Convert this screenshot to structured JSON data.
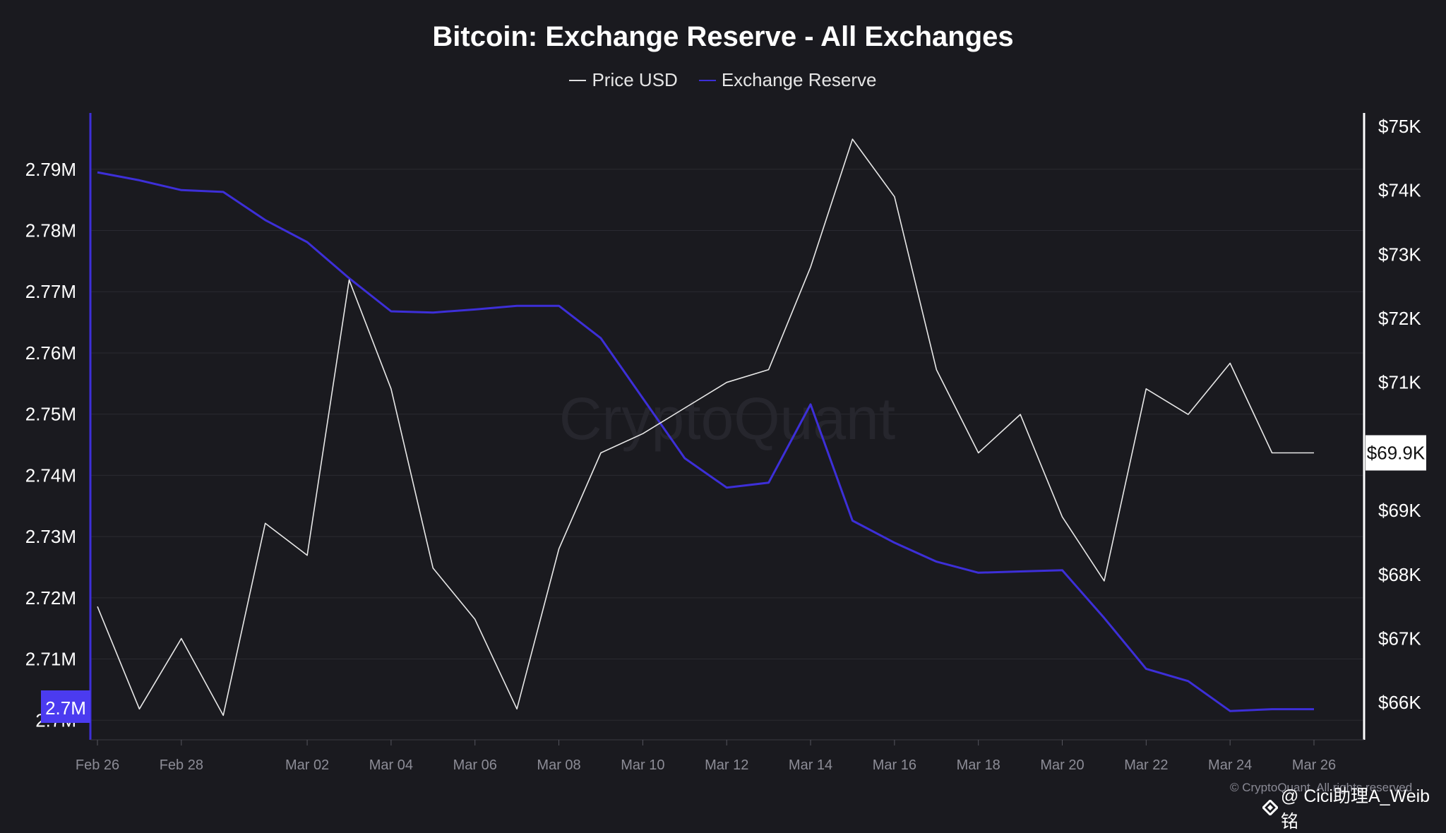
{
  "colors": {
    "background": "#1a1a1f",
    "price": "#ffffff",
    "reserve": "#3d2fd8",
    "reserve_badge": "#4b3bf0",
    "grid": "#2a2a31",
    "axis_text": "#ffffff",
    "tick_text": "#8c8c96"
  },
  "watermark": {
    "center": "CryptoQuant",
    "copyright": "© CryptoQuant. All rights reserved",
    "social": "@ Cici助理A_Weib铭"
  },
  "chart_data": {
    "type": "line",
    "title": "Bitcoin: Exchange Reserve - All Exchanges",
    "legend": [
      "Price USD",
      "Exchange Reserve"
    ],
    "legend_placement": "top-center",
    "grid": true,
    "x": [
      "Feb 26",
      "Feb 27",
      "Feb 28",
      "Feb 29",
      "Mar 01",
      "Mar 02",
      "Mar 03",
      "Mar 04",
      "Mar 05",
      "Mar 06",
      "Mar 07",
      "Mar 08",
      "Mar 09",
      "Mar 10",
      "Mar 11",
      "Mar 12",
      "Mar 13",
      "Mar 14",
      "Mar 15",
      "Mar 16",
      "Mar 17",
      "Mar 18",
      "Mar 19",
      "Mar 20",
      "Mar 21",
      "Mar 22",
      "Mar 23",
      "Mar 24",
      "Mar 25",
      "Mar 26"
    ],
    "x_tick_labels": [
      "Feb 26",
      "Feb 28",
      "Mar 02",
      "Mar 04",
      "Mar 06",
      "Mar 08",
      "Mar 10",
      "Mar 12",
      "Mar 14",
      "Mar 16",
      "Mar 18",
      "Mar 20",
      "Mar 22",
      "Mar 24",
      "Mar 26"
    ],
    "series": [
      {
        "name": "Exchange Reserve",
        "axis": "left",
        "values": [
          2.7895,
          2.7882,
          2.7866,
          2.7863,
          2.7817,
          2.7781,
          2.7722,
          2.7668,
          2.7666,
          2.7671,
          2.7677,
          2.7677,
          2.7624,
          2.7526,
          2.7428,
          2.738,
          2.7388,
          2.7516,
          2.7326,
          2.729,
          2.7259,
          2.7241,
          2.7243,
          2.7245,
          2.7167,
          2.7084,
          2.7064,
          2.7015,
          2.7018,
          2.7018
        ]
      },
      {
        "name": "Price USD",
        "axis": "right",
        "values": [
          67500,
          65900,
          67000,
          65800,
          68800,
          68300,
          72600,
          70900,
          68100,
          67300,
          65900,
          68400,
          69900,
          70200,
          70600,
          71000,
          71200,
          72800,
          74800,
          73900,
          71200,
          69900,
          70500,
          68900,
          67900,
          70900,
          70500,
          71300,
          69900,
          69900
        ]
      }
    ],
    "left_axis": {
      "tick_labels": [
        "2.79M",
        "2.78M",
        "2.77M",
        "2.76M",
        "2.75M",
        "2.74M",
        "2.73M",
        "2.72M",
        "2.71M",
        "2.7M"
      ],
      "ticks": [
        2.79,
        2.78,
        2.77,
        2.76,
        2.75,
        2.74,
        2.73,
        2.72,
        2.71,
        2.7
      ],
      "range": [
        2.6968,
        2.7992
      ],
      "current_value_label": "2.7M"
    },
    "right_axis": {
      "tick_labels": [
        "$75K",
        "$74K",
        "$73K",
        "$72K",
        "$71K",
        "$70K",
        "$69K",
        "$68K",
        "$67K",
        "$66K"
      ],
      "ticks": [
        75000,
        74000,
        73000,
        72000,
        71000,
        70000,
        69000,
        68000,
        67000,
        66000
      ],
      "range": [
        65418,
        75209
      ],
      "current_value_label": "$69.9K"
    }
  }
}
